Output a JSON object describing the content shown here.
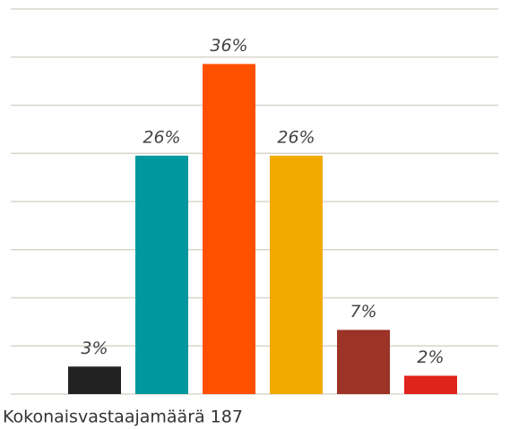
{
  "chart_data": {
    "type": "bar",
    "caption": "Kokonaisvastaajamäärä 187",
    "categories": [
      null,
      null,
      null,
      null,
      null,
      null
    ],
    "values": [
      3,
      26,
      36,
      26,
      7,
      2
    ],
    "value_labels": [
      "3%",
      "26%",
      "36%",
      "26%",
      "7%",
      "2%"
    ],
    "colors": [
      "#222222",
      "#00979f",
      "#ff5000",
      "#f2a900",
      "#9b3326",
      "#e0231c"
    ],
    "ylim": [
      0,
      42
    ],
    "yticks": [
      0,
      5.25,
      10.5,
      15.75,
      21,
      26.25,
      31.5,
      36.75,
      42
    ],
    "grid": true
  }
}
